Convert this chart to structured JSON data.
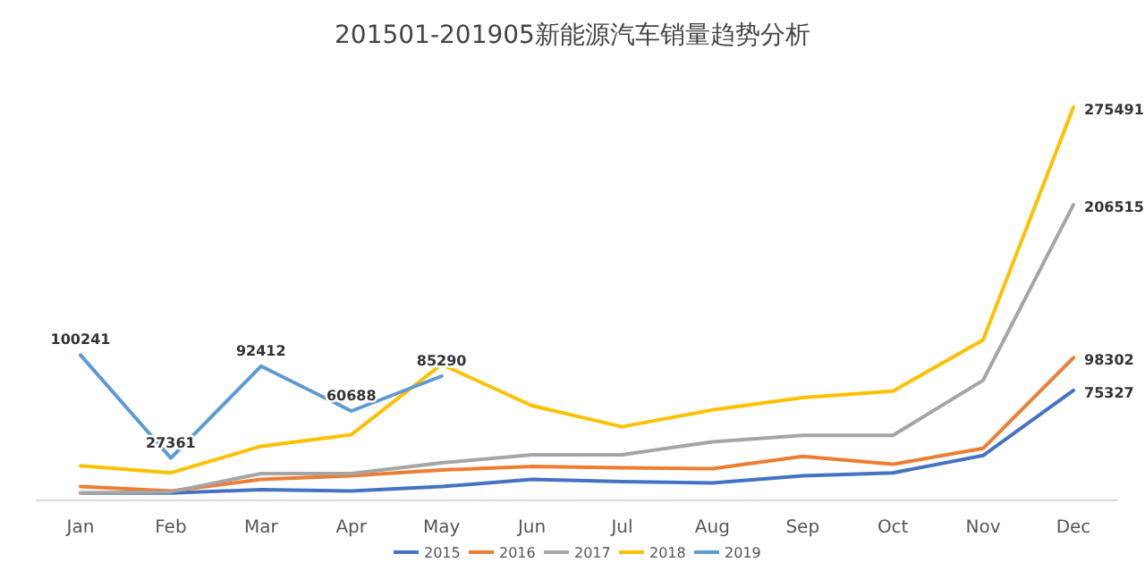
{
  "chart_data": {
    "type": "line",
    "title": "201501-201905新能源汽车销量趋势分析",
    "categories": [
      "Jan",
      "Feb",
      "Mar",
      "Apr",
      "May",
      "Jun",
      "Jul",
      "Aug",
      "Sep",
      "Oct",
      "Nov",
      "Dec"
    ],
    "legend": "bottom",
    "marker": "none",
    "line_style": "solid",
    "series": [
      {
        "name": "2015",
        "color": "#4472c4",
        "values": [
          2600,
          2600,
          5100,
          4100,
          7200,
          12300,
          10700,
          9700,
          14800,
          16900,
          29200,
          75327
        ],
        "value_labels": [
          null,
          null,
          null,
          null,
          null,
          null,
          null,
          null,
          null,
          null,
          null,
          "75327"
        ]
      },
      {
        "name": "2016",
        "color": "#ed7d31",
        "values": [
          7200,
          4100,
          12300,
          14800,
          18900,
          21500,
          20500,
          20000,
          28600,
          23000,
          34300,
          98302
        ],
        "value_labels": [
          null,
          null,
          null,
          null,
          null,
          null,
          null,
          null,
          null,
          null,
          null,
          "98302"
        ]
      },
      {
        "name": "2017",
        "color": "#a5a5a5",
        "values": [
          2600,
          3600,
          16400,
          16400,
          24000,
          29700,
          29700,
          38900,
          43500,
          43500,
          82400,
          206515
        ],
        "value_labels": [
          null,
          null,
          null,
          null,
          null,
          null,
          null,
          null,
          null,
          null,
          null,
          "206515"
        ]
      },
      {
        "name": "2018",
        "color": "#ffc000",
        "values": [
          22000,
          16900,
          35800,
          44000,
          93600,
          64500,
          49600,
          61400,
          70100,
          74700,
          111000,
          275491
        ],
        "value_labels": [
          null,
          null,
          null,
          null,
          null,
          null,
          null,
          null,
          null,
          null,
          null,
          "275491"
        ]
      },
      {
        "name": "2019",
        "color": "#5b9bd5",
        "values": [
          100241,
          27361,
          92412,
          60688,
          85290,
          null,
          null,
          null,
          null,
          null,
          null,
          null
        ],
        "value_labels": [
          "100241",
          "27361",
          "92412",
          "60688",
          "85290",
          null,
          null,
          null,
          null,
          null,
          null,
          null
        ]
      }
    ]
  }
}
